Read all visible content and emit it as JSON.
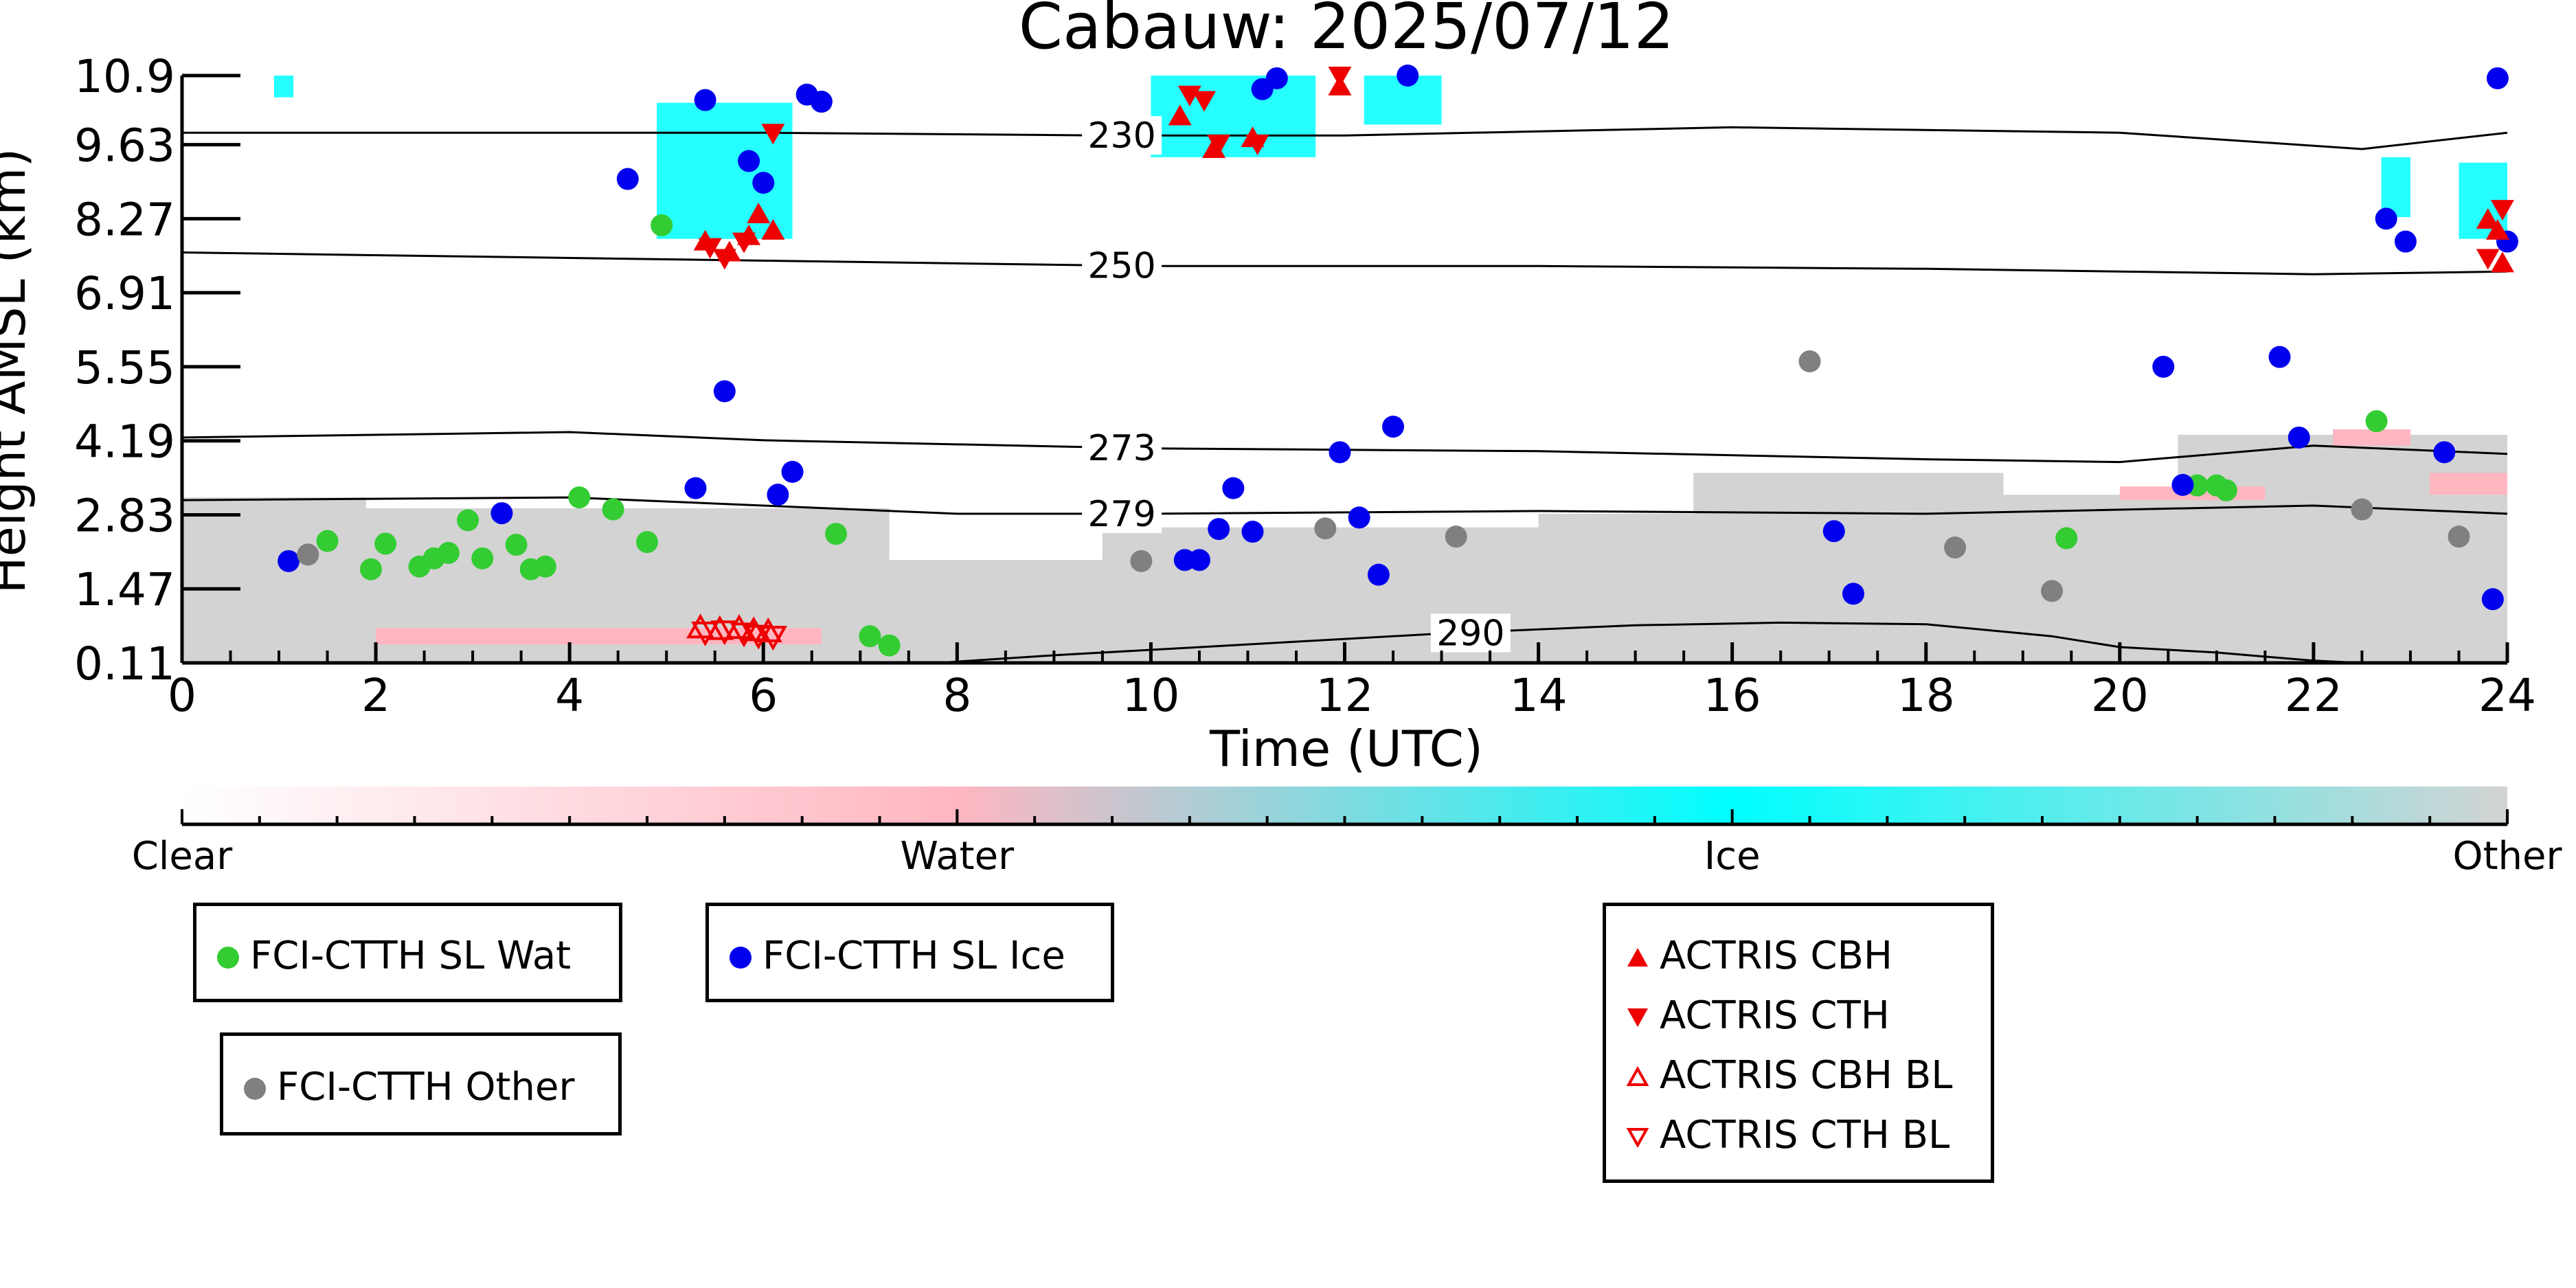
{
  "chart_data": {
    "type": "scatter",
    "title": "Cabauw: 2025/07/12",
    "xlabel": "Time (UTC)",
    "ylabel": "Height AMSL (km)",
    "xlim": [
      0,
      24
    ],
    "ylim": [
      0.11,
      10.9
    ],
    "xticks": [
      "0",
      "2",
      "4",
      "6",
      "8",
      "10",
      "12",
      "14",
      "16",
      "18",
      "20",
      "22",
      "24"
    ],
    "yticks": [
      "0.11",
      "1.47",
      "2.83",
      "4.19",
      "5.55",
      "6.91",
      "8.27",
      "9.63",
      "10.9"
    ],
    "grid": false,
    "background": "cloud phase classification curtain (Clear / Water / Ice / Other)",
    "colorbar": {
      "labels": [
        "Clear",
        "Water",
        "Ice",
        "Other"
      ],
      "colors": [
        "#ffffff",
        "#ffb6c1",
        "#00ffff",
        "#d3d3d3"
      ]
    },
    "contours": [
      {
        "label": "230",
        "points": [
          [
            0,
            9.85
          ],
          [
            6,
            9.85
          ],
          [
            9.5,
            9.8
          ],
          [
            12,
            9.8
          ],
          [
            16,
            9.95
          ],
          [
            20,
            9.85
          ],
          [
            22.5,
            9.55
          ],
          [
            24,
            9.85
          ]
        ]
      },
      {
        "label": "250",
        "points": [
          [
            0,
            7.65
          ],
          [
            4,
            7.55
          ],
          [
            8,
            7.45
          ],
          [
            10,
            7.4
          ],
          [
            14,
            7.4
          ],
          [
            18,
            7.35
          ],
          [
            22,
            7.25
          ],
          [
            24,
            7.3
          ]
        ]
      },
      {
        "label": "273",
        "points": [
          [
            0,
            4.25
          ],
          [
            4,
            4.35
          ],
          [
            6,
            4.2
          ],
          [
            10,
            4.05
          ],
          [
            14,
            4.0
          ],
          [
            18,
            3.85
          ],
          [
            20,
            3.8
          ],
          [
            22,
            4.1
          ],
          [
            24,
            3.95
          ]
        ]
      },
      {
        "label": "279",
        "points": [
          [
            0,
            3.1
          ],
          [
            4,
            3.15
          ],
          [
            6,
            3.0
          ],
          [
            8,
            2.85
          ],
          [
            10,
            2.85
          ],
          [
            14,
            2.9
          ],
          [
            18,
            2.85
          ],
          [
            22,
            3.0
          ],
          [
            24,
            2.85
          ]
        ]
      },
      {
        "label": "290",
        "points": [
          [
            7.8,
            0.11
          ],
          [
            9,
            0.25
          ],
          [
            11,
            0.45
          ],
          [
            13,
            0.65
          ],
          [
            15,
            0.8
          ],
          [
            16.5,
            0.85
          ],
          [
            18,
            0.82
          ],
          [
            19.3,
            0.6
          ],
          [
            20,
            0.4
          ],
          [
            21,
            0.3
          ],
          [
            22,
            0.15
          ],
          [
            22.5,
            0.11
          ]
        ]
      }
    ],
    "series": [
      {
        "name": "FCI-CTTH SL Wat",
        "color": "#33cc33",
        "marker": "circle",
        "points": [
          [
            1.5,
            2.35
          ],
          [
            1.95,
            1.83
          ],
          [
            2.1,
            2.3
          ],
          [
            2.45,
            1.88
          ],
          [
            2.6,
            2.03
          ],
          [
            2.75,
            2.13
          ],
          [
            2.95,
            2.73
          ],
          [
            3.1,
            2.03
          ],
          [
            3.45,
            2.28
          ],
          [
            3.6,
            1.83
          ],
          [
            3.75,
            1.88
          ],
          [
            4.1,
            3.15
          ],
          [
            4.45,
            2.93
          ],
          [
            4.8,
            2.33
          ],
          [
            4.95,
            8.15
          ],
          [
            6.75,
            2.48
          ],
          [
            7.1,
            0.6
          ],
          [
            7.3,
            0.43
          ],
          [
            20.8,
            3.37
          ],
          [
            21.0,
            3.37
          ],
          [
            21.1,
            3.28
          ],
          [
            22.65,
            4.55
          ],
          [
            19.45,
            2.4
          ]
        ]
      },
      {
        "name": "FCI-CTTH SL Ice",
        "color": "#0000ee",
        "marker": "circle",
        "points": [
          [
            1.1,
            1.98
          ],
          [
            3.3,
            2.86
          ],
          [
            4.6,
            9.0
          ],
          [
            5.3,
            3.32
          ],
          [
            5.4,
            10.45
          ],
          [
            5.6,
            5.1
          ],
          [
            5.85,
            9.33
          ],
          [
            6.0,
            8.93
          ],
          [
            6.15,
            3.2
          ],
          [
            6.3,
            3.62
          ],
          [
            6.45,
            10.55
          ],
          [
            6.6,
            10.42
          ],
          [
            10.35,
            2.0
          ],
          [
            10.5,
            2.0
          ],
          [
            10.7,
            2.57
          ],
          [
            10.85,
            3.32
          ],
          [
            11.05,
            2.52
          ],
          [
            11.15,
            10.65
          ],
          [
            11.3,
            10.85
          ],
          [
            11.95,
            3.98
          ],
          [
            12.15,
            2.78
          ],
          [
            12.35,
            1.73
          ],
          [
            12.5,
            4.45
          ],
          [
            12.65,
            10.9
          ],
          [
            17.05,
            2.53
          ],
          [
            17.25,
            1.38
          ],
          [
            20.45,
            5.55
          ],
          [
            20.65,
            3.38
          ],
          [
            21.65,
            5.73
          ],
          [
            21.85,
            4.25
          ],
          [
            22.75,
            8.27
          ],
          [
            22.95,
            7.85
          ],
          [
            23.35,
            3.98
          ],
          [
            23.85,
            1.28
          ],
          [
            23.9,
            10.85
          ],
          [
            24.0,
            7.85
          ]
        ]
      },
      {
        "name": "FCI-CTTH Other",
        "color": "#808080",
        "marker": "circle",
        "points": [
          [
            1.3,
            2.1
          ],
          [
            9.9,
            1.98
          ],
          [
            11.8,
            2.58
          ],
          [
            13.15,
            2.43
          ],
          [
            16.8,
            5.65
          ],
          [
            18.3,
            2.23
          ],
          [
            19.3,
            1.43
          ],
          [
            22.5,
            2.93
          ],
          [
            23.5,
            2.43
          ]
        ]
      },
      {
        "name": "ACTRIS CBH",
        "color": "#ee0000",
        "marker": "triangle-up",
        "points": [
          [
            5.4,
            7.85
          ],
          [
            5.65,
            7.65
          ],
          [
            5.85,
            7.95
          ],
          [
            5.95,
            8.35
          ],
          [
            6.1,
            8.05
          ],
          [
            10.3,
            10.15
          ],
          [
            10.65,
            9.55
          ],
          [
            11.05,
            9.75
          ],
          [
            11.95,
            10.7
          ],
          [
            23.8,
            8.25
          ],
          [
            23.9,
            8.05
          ],
          [
            23.95,
            7.45
          ]
        ]
      },
      {
        "name": "ACTRIS CTH",
        "color": "#ee0000",
        "marker": "triangle-down",
        "points": [
          [
            5.45,
            7.75
          ],
          [
            5.6,
            7.55
          ],
          [
            5.8,
            7.85
          ],
          [
            6.1,
            9.85
          ],
          [
            10.4,
            10.55
          ],
          [
            10.55,
            10.45
          ],
          [
            10.7,
            9.65
          ],
          [
            11.1,
            9.65
          ],
          [
            11.95,
            10.9
          ],
          [
            23.8,
            7.55
          ],
          [
            23.95,
            8.45
          ]
        ]
      },
      {
        "name": "ACTRIS CBH BL",
        "color": "#ee0000",
        "marker": "triangle-up-open",
        "points": [
          [
            5.35,
            0.75
          ],
          [
            5.55,
            0.72
          ],
          [
            5.75,
            0.74
          ],
          [
            5.9,
            0.7
          ],
          [
            6.05,
            0.68
          ]
        ]
      },
      {
        "name": "ACTRIS CTH BL",
        "color": "#ee0000",
        "marker": "triangle-down-open",
        "points": [
          [
            5.4,
            0.68
          ],
          [
            5.6,
            0.7
          ],
          [
            5.8,
            0.66
          ],
          [
            5.95,
            0.62
          ],
          [
            6.1,
            0.6
          ]
        ]
      }
    ]
  },
  "legends": [
    {
      "id": "wat",
      "items": [
        {
          "label": "FCI-CTTH SL Wat",
          "color": "#33cc33",
          "marker": "circle"
        }
      ]
    },
    {
      "id": "ice",
      "items": [
        {
          "label": "FCI-CTTH SL Ice",
          "color": "#0000ee",
          "marker": "circle"
        }
      ]
    },
    {
      "id": "other",
      "items": [
        {
          "label": "FCI-CTTH Other",
          "color": "#808080",
          "marker": "circle"
        }
      ]
    },
    {
      "id": "actris",
      "items": [
        {
          "label": "ACTRIS CBH",
          "color": "#ee0000",
          "marker": "triangle-up"
        },
        {
          "label": "ACTRIS CTH",
          "color": "#ee0000",
          "marker": "triangle-down"
        },
        {
          "label": "ACTRIS CBH BL",
          "color": "#ee0000",
          "marker": "triangle-up-open"
        },
        {
          "label": "ACTRIS CTH BL",
          "color": "#ee0000",
          "marker": "triangle-down-open"
        }
      ]
    }
  ]
}
